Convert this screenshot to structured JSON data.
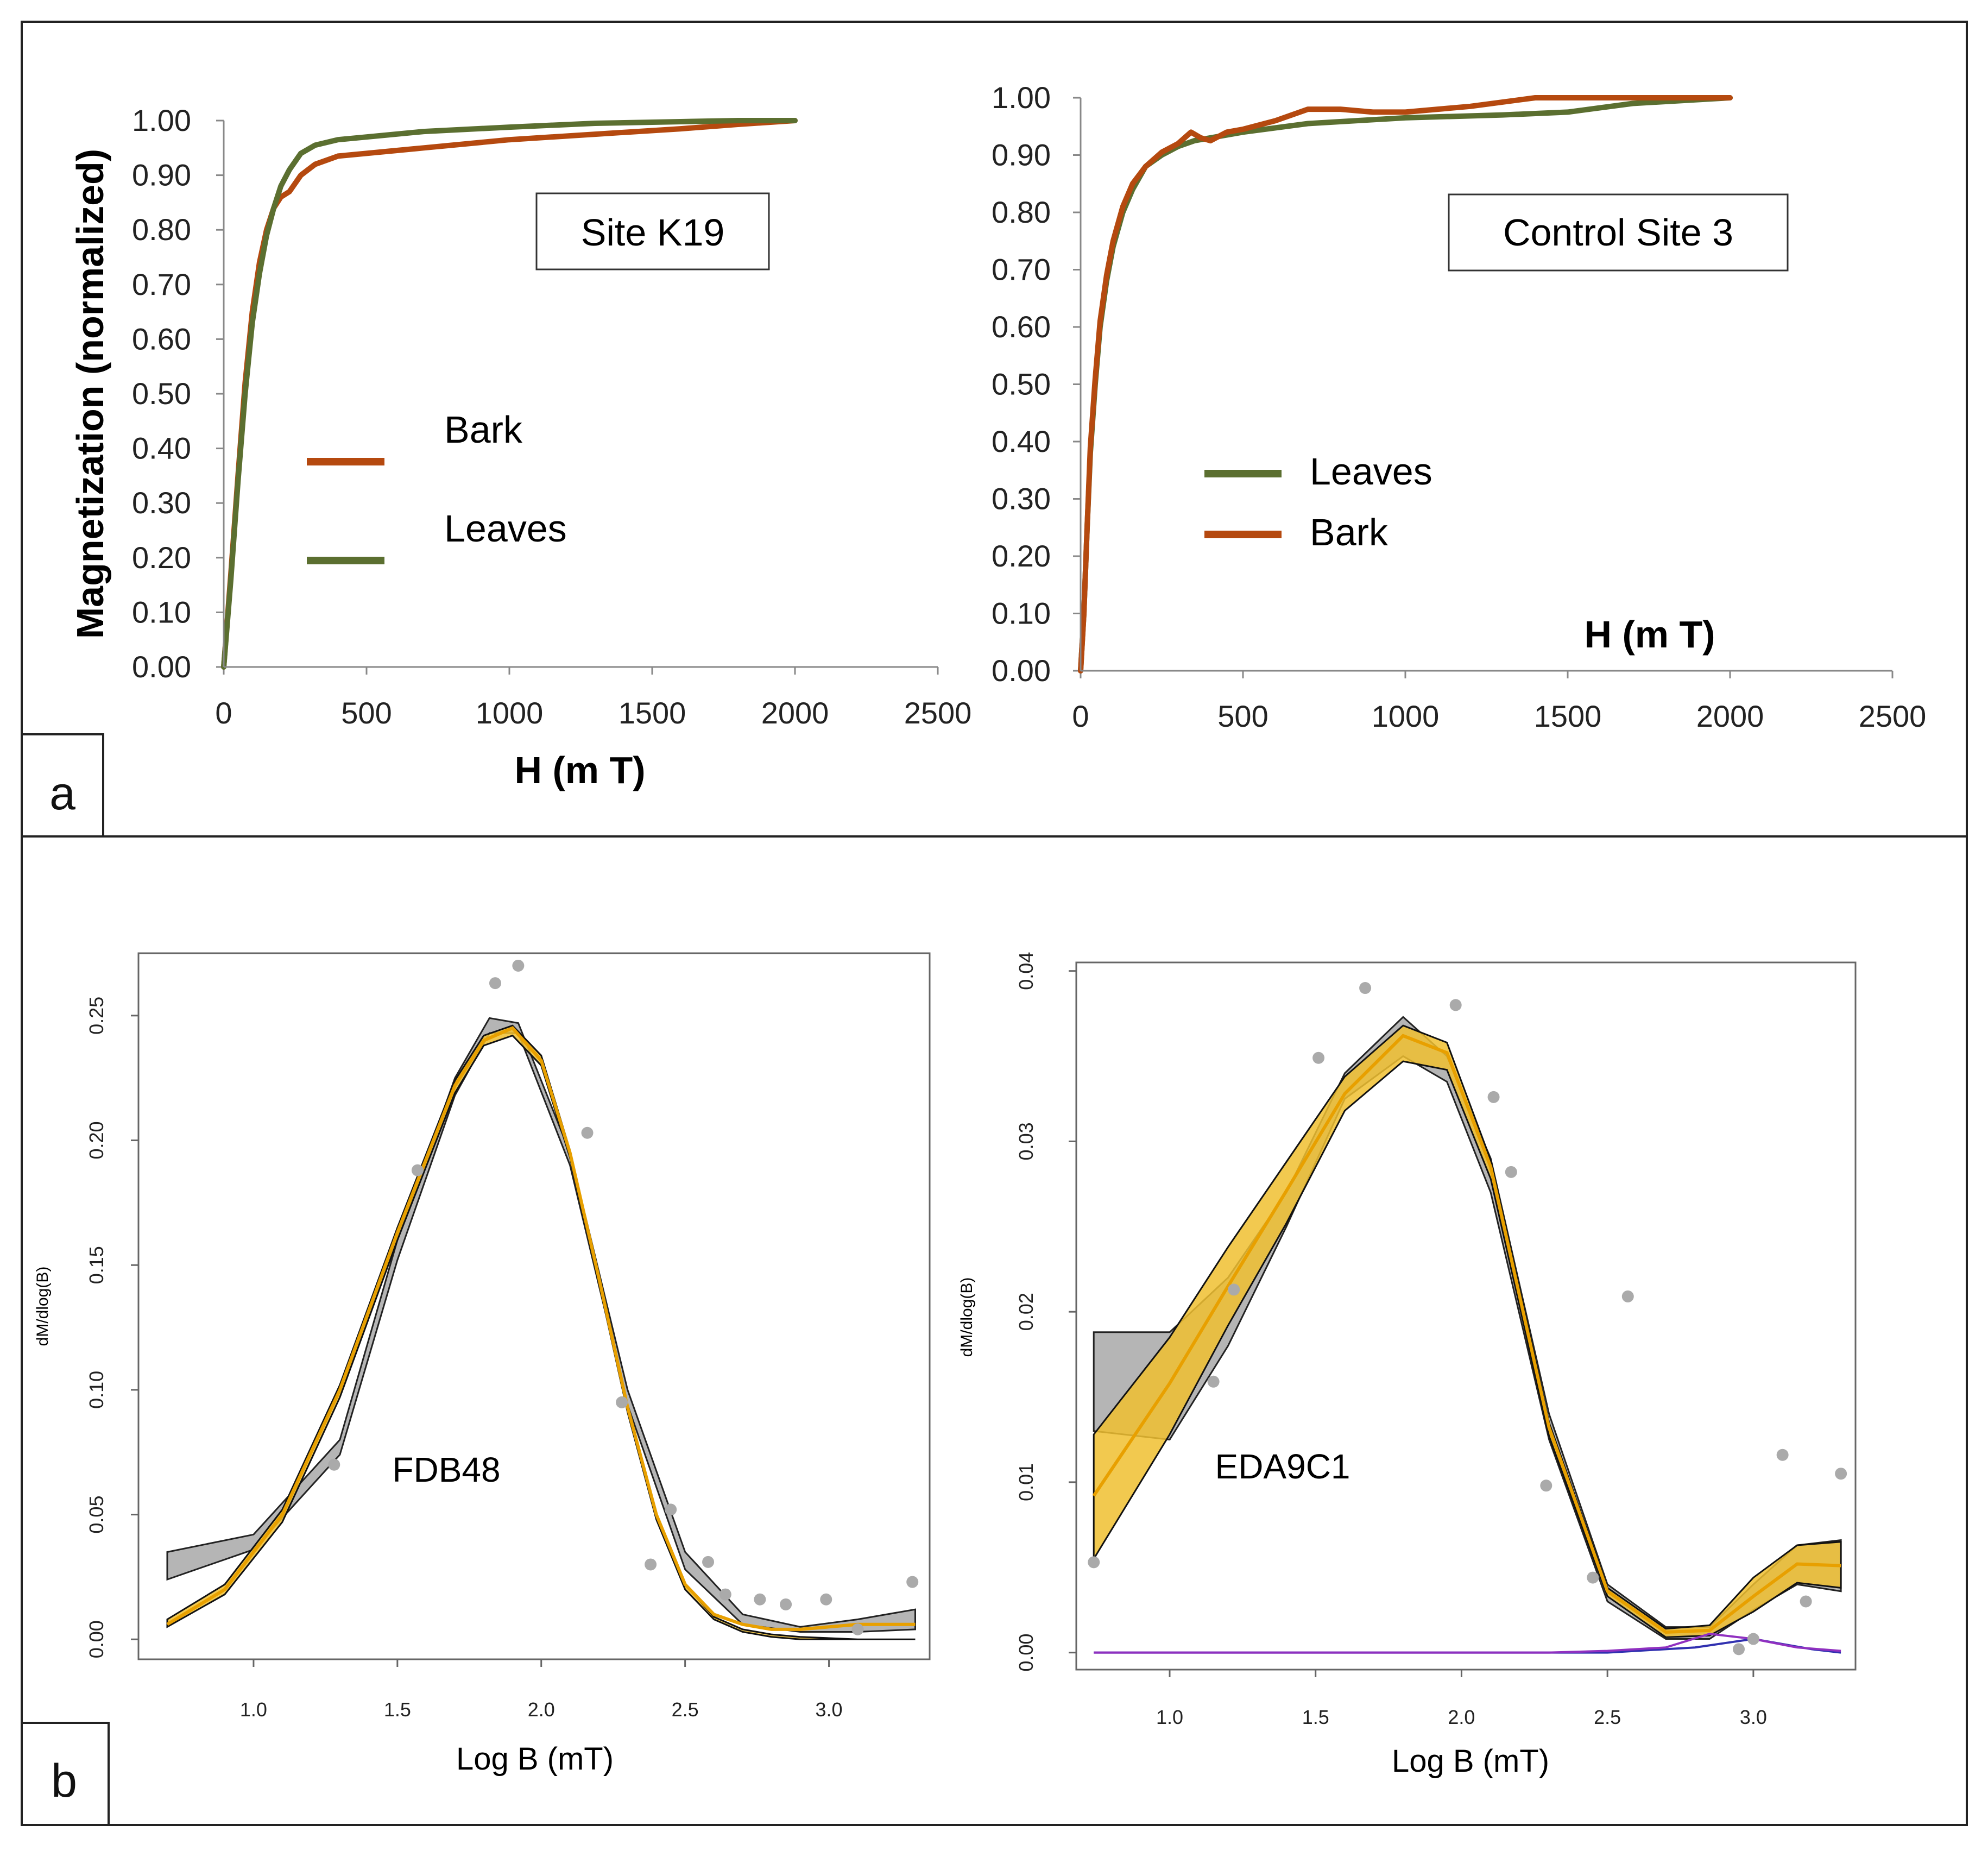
{
  "panel_labels": [
    "a",
    "b"
  ],
  "chart_data": [
    {
      "type": "line",
      "panel": "a",
      "annotation": "Site K19",
      "ylabel": "Magnetization (normalized)",
      "xlabel": "H (m T)",
      "xlim": [
        0,
        2500
      ],
      "ylim": [
        0,
        1
      ],
      "xticks": [
        "0",
        "500",
        "1000",
        "1500",
        "2000",
        "2500"
      ],
      "yticks": [
        "0.00",
        "0.10",
        "0.20",
        "0.30",
        "0.40",
        "0.50",
        "0.60",
        "0.70",
        "0.80",
        "0.90",
        "1.00"
      ],
      "legend": [
        "Bark",
        "Leaves"
      ],
      "series": [
        {
          "name": "Bark",
          "color": "#b5490f",
          "x": [
            0,
            25,
            50,
            75,
            100,
            125,
            150,
            175,
            200,
            230,
            270,
            320,
            400,
            500,
            700,
            1000,
            1300,
            1600,
            1800,
            2000
          ],
          "y": [
            0,
            0.17,
            0.35,
            0.52,
            0.65,
            0.74,
            0.8,
            0.84,
            0.86,
            0.87,
            0.9,
            0.92,
            0.935,
            0.94,
            0.95,
            0.965,
            0.975,
            0.985,
            0.993,
            1.0
          ]
        },
        {
          "name": "Leaves",
          "color": "#5b6f30",
          "x": [
            0,
            25,
            50,
            75,
            100,
            125,
            150,
            175,
            200,
            230,
            270,
            320,
            400,
            500,
            700,
            1000,
            1300,
            1600,
            1800,
            2000
          ],
          "y": [
            0,
            0.16,
            0.34,
            0.5,
            0.63,
            0.72,
            0.79,
            0.84,
            0.88,
            0.91,
            0.94,
            0.955,
            0.965,
            0.97,
            0.98,
            0.988,
            0.995,
            0.998,
            1.0,
            1.0
          ]
        }
      ]
    },
    {
      "type": "line",
      "panel": "a",
      "annotation": "Control Site 3",
      "xlabel": "H (m T)",
      "xlim": [
        0,
        2500
      ],
      "ylim": [
        0,
        1
      ],
      "xticks": [
        "0",
        "500",
        "1000",
        "1500",
        "2000",
        "2500"
      ],
      "yticks": [
        "0.00",
        "0.10",
        "0.20",
        "0.30",
        "0.40",
        "0.50",
        "0.60",
        "0.70",
        "0.80",
        "0.90",
        "1.00"
      ],
      "legend": [
        "Leaves",
        "Bark"
      ],
      "series": [
        {
          "name": "Leaves",
          "color": "#5b6f30",
          "x": [
            0,
            10,
            20,
            30,
            45,
            60,
            80,
            100,
            130,
            160,
            200,
            250,
            300,
            350,
            400,
            500,
            700,
            1000,
            1300,
            1500,
            1700,
            2000
          ],
          "y": [
            0,
            0.1,
            0.25,
            0.38,
            0.5,
            0.6,
            0.68,
            0.74,
            0.8,
            0.84,
            0.88,
            0.9,
            0.915,
            0.925,
            0.93,
            0.94,
            0.955,
            0.965,
            0.97,
            0.975,
            0.99,
            1.0
          ]
        },
        {
          "name": "Bark",
          "color": "#b5490f",
          "x": [
            0,
            10,
            20,
            30,
            45,
            60,
            80,
            100,
            130,
            160,
            200,
            250,
            300,
            340,
            370,
            400,
            450,
            500,
            600,
            700,
            800,
            900,
            1000,
            1200,
            1400,
            1600,
            1800,
            2000
          ],
          "y": [
            0,
            0.1,
            0.25,
            0.39,
            0.51,
            0.61,
            0.69,
            0.75,
            0.81,
            0.85,
            0.88,
            0.905,
            0.92,
            0.94,
            0.93,
            0.925,
            0.94,
            0.945,
            0.96,
            0.98,
            0.98,
            0.975,
            0.975,
            0.985,
            1.0,
            1.0,
            1.0,
            1.0
          ]
        }
      ]
    },
    {
      "type": "line",
      "panel": "b",
      "annotation": "FDB48",
      "ylabel": "dM/dlog(B)",
      "xlabel": "Log B (mT)",
      "xlim": [
        0.6,
        3.35
      ],
      "ylim": [
        -0.008,
        0.275
      ],
      "xticks": [
        "1.0",
        "1.5",
        "2.0",
        "2.5",
        "3.0"
      ],
      "yticks": [
        "0.00",
        "0.05",
        "0.10",
        "0.15",
        "0.20",
        "0.25"
      ],
      "colors": {
        "data_points": "#aaaaaa",
        "envelope": "#b5b5b5",
        "fit": "#222222",
        "band": "#f0c030"
      },
      "points": {
        "x": [
          1.28,
          1.57,
          1.84,
          1.92,
          2.16,
          2.28,
          2.38,
          2.45,
          2.58,
          2.64,
          2.76,
          2.85,
          2.99,
          3.1,
          3.29
        ],
        "y": [
          0.07,
          0.188,
          0.263,
          0.27,
          0.203,
          0.095,
          0.03,
          0.052,
          0.031,
          0.018,
          0.016,
          0.014,
          0.016,
          0.004,
          0.023
        ]
      },
      "envelope_upper": {
        "x": [
          0.7,
          1.0,
          1.3,
          1.5,
          1.7,
          1.82,
          1.92,
          2.1,
          2.3,
          2.5,
          2.7,
          2.9,
          3.1,
          3.3
        ],
        "y": [
          0.035,
          0.042,
          0.08,
          0.16,
          0.225,
          0.249,
          0.247,
          0.195,
          0.1,
          0.035,
          0.01,
          0.005,
          0.008,
          0.012
        ]
      },
      "envelope_lower": {
        "x": [
          0.7,
          1.0,
          1.3,
          1.5,
          1.7,
          1.82,
          1.92,
          2.1,
          2.3,
          2.5,
          2.7,
          2.9,
          3.1,
          3.3
        ],
        "y": [
          0.024,
          0.036,
          0.074,
          0.152,
          0.218,
          0.243,
          0.243,
          0.19,
          0.094,
          0.028,
          0.006,
          0.003,
          0.003,
          0.004
        ]
      },
      "fit": {
        "x": [
          0.7,
          0.9,
          1.1,
          1.3,
          1.5,
          1.7,
          1.8,
          1.9,
          2.0,
          2.1,
          2.2,
          2.3,
          2.4,
          2.5,
          2.6,
          2.7,
          2.8,
          2.9,
          3.1,
          3.3
        ],
        "y": [
          0.006,
          0.02,
          0.05,
          0.1,
          0.163,
          0.222,
          0.24,
          0.245,
          0.232,
          0.195,
          0.145,
          0.093,
          0.05,
          0.022,
          0.01,
          0.006,
          0.004,
          0.004,
          0.006,
          0.006
        ]
      },
      "band_upper": {
        "x": [
          0.7,
          0.9,
          1.1,
          1.3,
          1.5,
          1.7,
          1.8,
          1.9,
          2.0,
          2.1,
          2.2,
          2.3,
          2.4,
          2.5,
          2.6,
          2.7,
          2.8,
          2.9,
          3.1,
          3.3
        ],
        "y": [
          0.008,
          0.022,
          0.052,
          0.102,
          0.165,
          0.224,
          0.242,
          0.246,
          0.234,
          0.196,
          0.146,
          0.094,
          0.05,
          0.022,
          0.009,
          0.004,
          0.002,
          0.001,
          0.0,
          0.0
        ]
      },
      "band_lower": {
        "x": [
          0.7,
          0.9,
          1.1,
          1.3,
          1.5,
          1.7,
          1.8,
          1.9,
          2.0,
          2.1,
          2.2,
          2.3,
          2.4,
          2.5,
          2.6,
          2.7,
          2.8,
          2.9,
          3.1,
          3.3
        ],
        "y": [
          0.005,
          0.018,
          0.047,
          0.097,
          0.16,
          0.219,
          0.238,
          0.242,
          0.23,
          0.193,
          0.143,
          0.091,
          0.048,
          0.02,
          0.008,
          0.003,
          0.001,
          0.0,
          0.0,
          0.0
        ]
      }
    },
    {
      "type": "line",
      "panel": "b",
      "annotation": "EDA9C1",
      "ylabel": "dM/dlog(B)",
      "xlabel": "Log B (mT)",
      "xlim": [
        0.68,
        3.35
      ],
      "ylim": [
        -0.001,
        0.0405
      ],
      "xticks": [
        "1.0",
        "1.5",
        "2.0",
        "2.5",
        "3.0"
      ],
      "yticks": [
        "0.00",
        "0.01",
        "0.02",
        "0.03",
        "0.04"
      ],
      "colors": {
        "data_points": "#aaaaaa",
        "envelope": "#b5b5b5",
        "fit": "#222222",
        "band": "#f0c030",
        "component_1": "#3030b0",
        "component_2": "#9030c0"
      },
      "points": {
        "x": [
          0.74,
          1.15,
          1.22,
          1.51,
          1.67,
          1.98,
          2.11,
          2.17,
          2.29,
          2.45,
          2.57,
          2.95,
          3.0,
          3.1,
          3.18,
          3.3
        ],
        "y": [
          0.0053,
          0.0159,
          0.0213,
          0.0349,
          0.039,
          0.038,
          0.0326,
          0.0282,
          0.0098,
          0.0044,
          0.0209,
          0.0002,
          0.0008,
          0.0116,
          0.003,
          0.0105
        ]
      },
      "envelope_upper": {
        "x": [
          0.74,
          1.0,
          1.2,
          1.4,
          1.6,
          1.8,
          1.95,
          2.1,
          2.3,
          2.5,
          2.7,
          2.85,
          3.0,
          3.15,
          3.3
        ],
        "y": [
          0.0188,
          0.0188,
          0.022,
          0.027,
          0.034,
          0.0373,
          0.035,
          0.029,
          0.014,
          0.004,
          0.0015,
          0.0015,
          0.004,
          0.0063,
          0.0066
        ]
      },
      "envelope_lower": {
        "x": [
          0.74,
          1.0,
          1.2,
          1.4,
          1.6,
          1.8,
          1.95,
          2.1,
          2.3,
          2.5,
          2.7,
          2.85,
          3.0,
          3.15,
          3.3
        ],
        "y": [
          0.013,
          0.0125,
          0.018,
          0.025,
          0.0325,
          0.035,
          0.0335,
          0.027,
          0.0125,
          0.003,
          0.0008,
          0.0008,
          0.0025,
          0.004,
          0.0036
        ]
      },
      "fit": {
        "x": [
          0.74,
          1.0,
          1.2,
          1.4,
          1.6,
          1.8,
          1.95,
          2.1,
          2.3,
          2.5,
          2.7,
          2.85,
          3.0,
          3.15,
          3.3
        ],
        "y": [
          0.0092,
          0.0158,
          0.0215,
          0.0271,
          0.0328,
          0.0362,
          0.0352,
          0.0285,
          0.0132,
          0.0036,
          0.0012,
          0.0013,
          0.0033,
          0.0052,
          0.0051
        ]
      },
      "band_upper": {
        "x": [
          0.74,
          1.0,
          1.2,
          1.4,
          1.6,
          1.8,
          1.95,
          2.1,
          2.3,
          2.5,
          2.7,
          2.85,
          3.0,
          3.15,
          3.3
        ],
        "y": [
          0.0128,
          0.0185,
          0.0238,
          0.0288,
          0.0338,
          0.0368,
          0.0358,
          0.0289,
          0.0135,
          0.0038,
          0.0014,
          0.0016,
          0.0044,
          0.0063,
          0.0065
        ]
      },
      "band_lower": {
        "x": [
          0.74,
          1.0,
          1.2,
          1.4,
          1.6,
          1.8,
          1.95,
          2.1,
          2.3,
          2.5,
          2.7,
          2.85,
          3.0,
          3.15,
          3.3
        ],
        "y": [
          0.0055,
          0.0128,
          0.0192,
          0.0252,
          0.0318,
          0.0347,
          0.0342,
          0.0278,
          0.0127,
          0.0033,
          0.0009,
          0.001,
          0.0024,
          0.0041,
          0.0038
        ]
      },
      "component_1": {
        "x": [
          0.74,
          1.0,
          1.5,
          2.0,
          2.5,
          2.8,
          3.0,
          3.2,
          3.3
        ],
        "y": [
          0.0,
          0.0,
          0.0,
          0.0,
          0.0,
          0.0003,
          0.0008,
          0.0002,
          0.0
        ]
      },
      "component_2": {
        "x": [
          0.74,
          1.0,
          1.5,
          2.0,
          2.3,
          2.5,
          2.7,
          2.85,
          3.0,
          3.15,
          3.3
        ],
        "y": [
          0.0,
          0.0,
          0.0,
          0.0,
          0.0,
          0.0001,
          0.0003,
          0.0011,
          0.0008,
          0.0003,
          0.0001
        ]
      }
    }
  ]
}
